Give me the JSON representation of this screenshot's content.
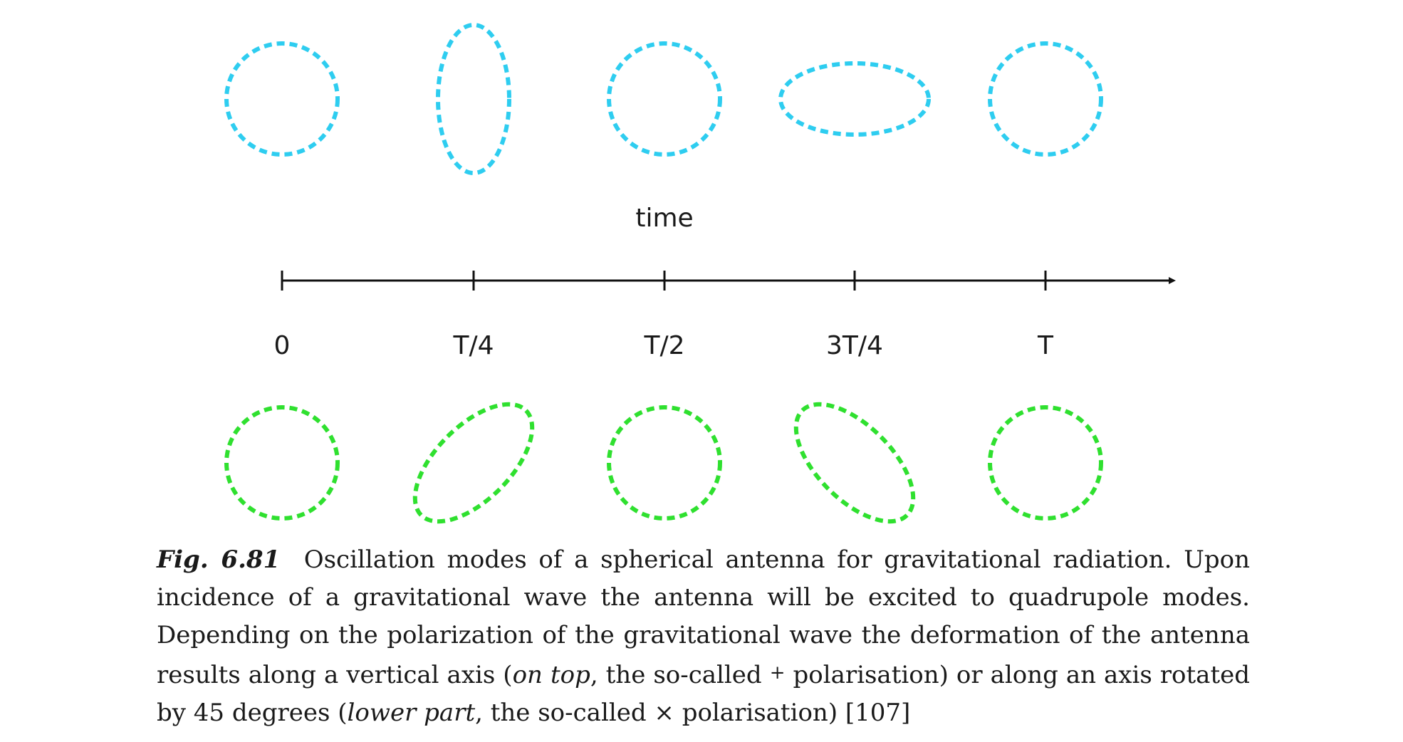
{
  "figure": {
    "top_row_color": "#2ecdf0",
    "bottom_row_color": "#2fe02f",
    "axis_label": "time",
    "ticks": [
      "0",
      "T/4",
      "T/2",
      "3T/4",
      "T"
    ],
    "top_row_shapes": [
      "circle",
      "vertical-ellipse",
      "circle",
      "horizontal-ellipse",
      "circle"
    ],
    "bottom_row_shapes": [
      "circle",
      "ellipse-tilted-right",
      "circle",
      "ellipse-tilted-left",
      "circle"
    ]
  },
  "caption": {
    "fig_label": "Fig. 6.81",
    "text_1": "Oscillation modes of a spherical antenna for gravitational radiation. Upon incidence of a gravitational wave the antenna will be excited to quadrupole modes. Depending on the polarization of the gravitational wave the deformation of the antenna results along a vertical axis (",
    "on_top": "on top",
    "text_2": ", the so-called ",
    "plus": "+",
    "text_3": " polarisation) or along an axis rotated by 45 degrees (",
    "lower_part": "lower part",
    "text_4": ", the so-called ",
    "times": "×",
    "text_5": " polarisation) [107]"
  }
}
